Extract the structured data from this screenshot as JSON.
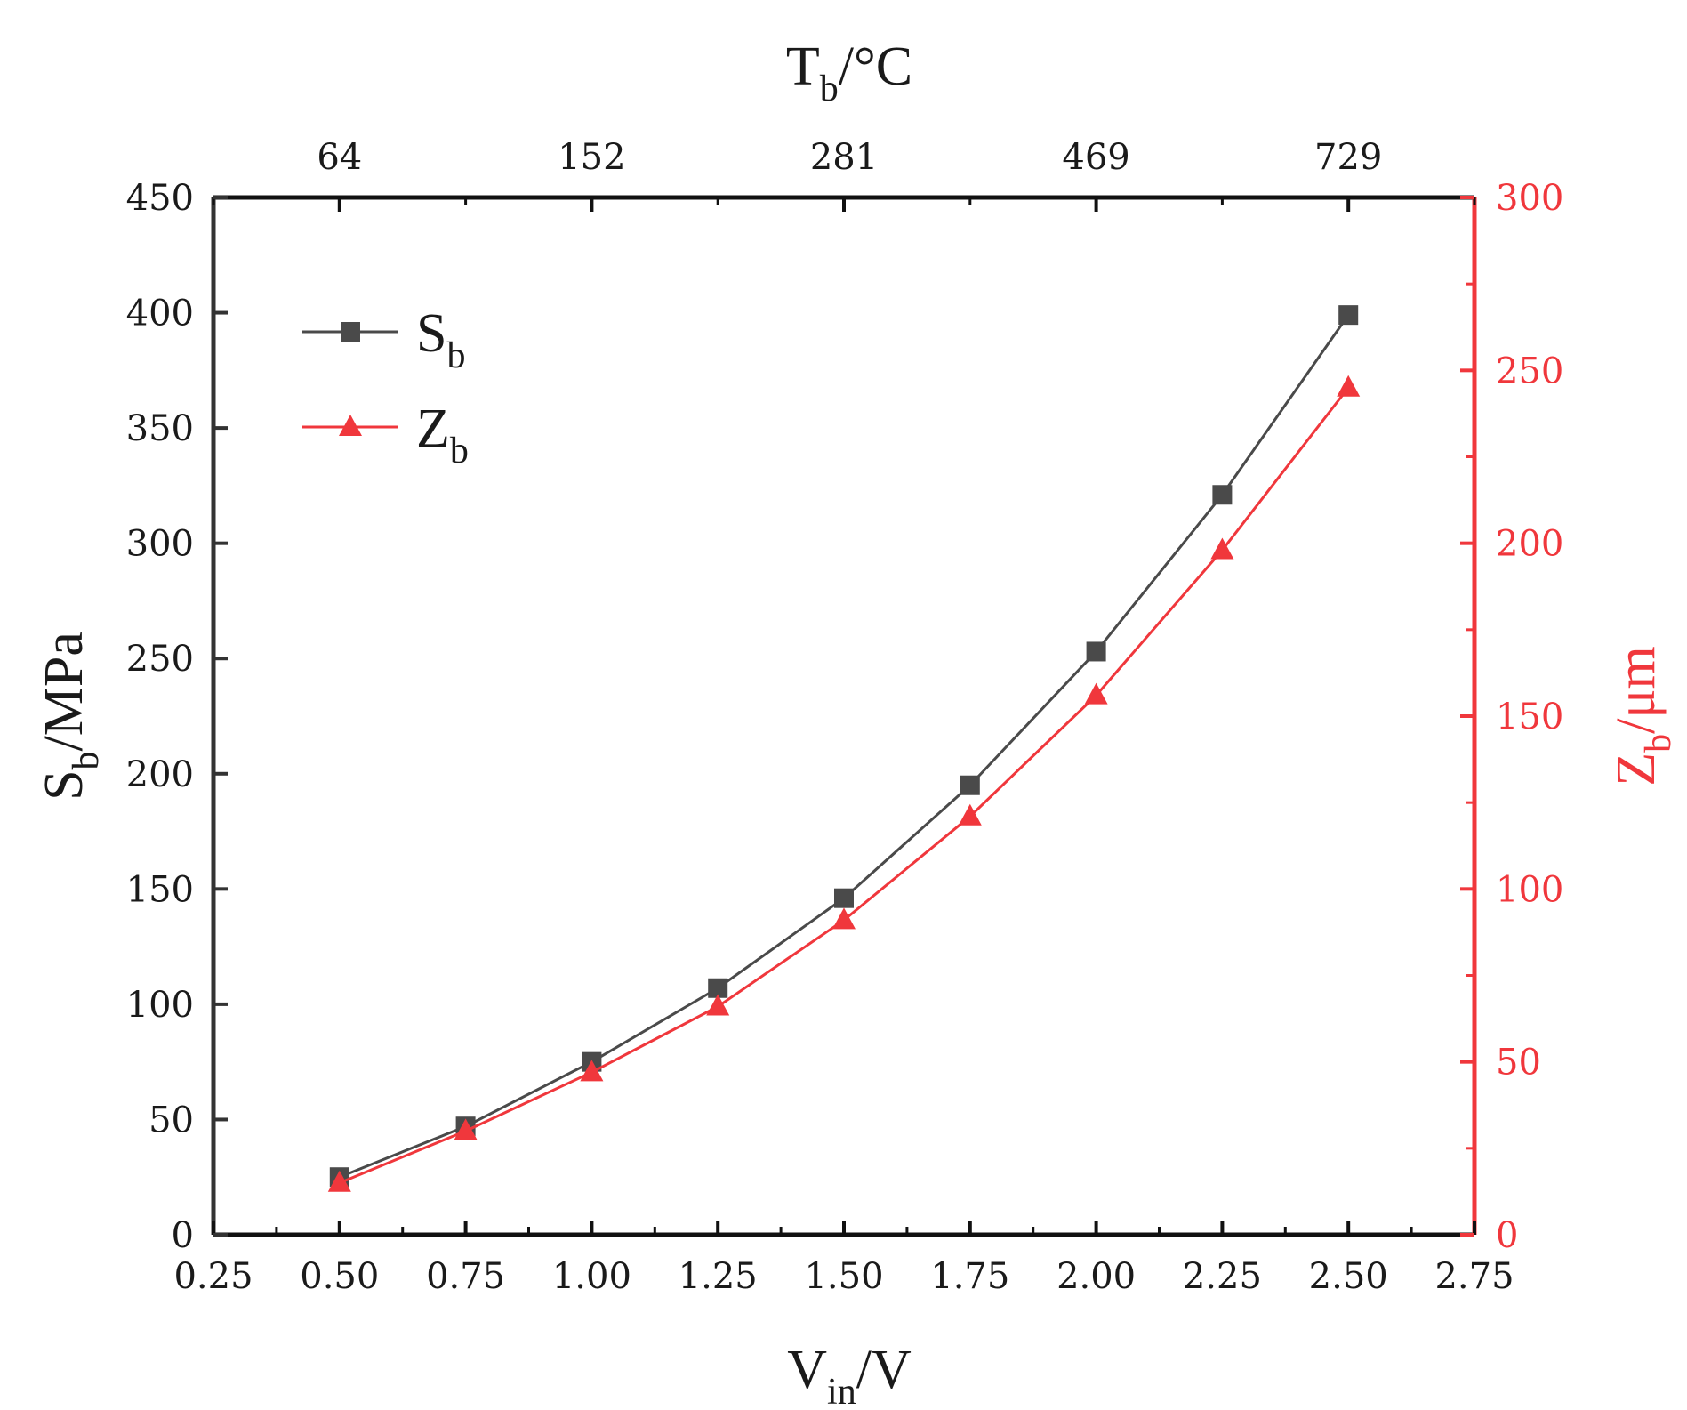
{
  "chart_data": {
    "type": "line",
    "xlabel": {
      "main": "V",
      "sub": "in",
      "tail": "/V"
    },
    "ylabel_left": {
      "main": "S",
      "sub": "b",
      "tail": "/MPa"
    },
    "ylabel_right": {
      "main": "Z",
      "sub": "b",
      "tail": "/μm"
    },
    "xlabel_top": {
      "main": "T",
      "sub": "b",
      "tail": "/°C"
    },
    "xlim": [
      0.25,
      2.75
    ],
    "ylim_left": [
      0,
      450
    ],
    "ylim_right": [
      0,
      300
    ],
    "x_ticks": [
      "0.25",
      "0.50",
      "0.75",
      "1.00",
      "1.25",
      "1.50",
      "1.75",
      "2.00",
      "2.25",
      "2.50",
      "2.75"
    ],
    "y_ticks_left": [
      "0",
      "50",
      "100",
      "150",
      "200",
      "250",
      "300",
      "350",
      "400",
      "450"
    ],
    "y_ticks_right": [
      "0",
      "50",
      "100",
      "150",
      "200",
      "250",
      "300"
    ],
    "top_ticks": [
      {
        "x": 0.5,
        "label": "64"
      },
      {
        "x": 1.0,
        "label": "152"
      },
      {
        "x": 1.5,
        "label": "281"
      },
      {
        "x": 2.0,
        "label": "469"
      },
      {
        "x": 2.5,
        "label": "729"
      }
    ],
    "x": [
      0.5,
      0.75,
      1.0,
      1.25,
      1.5,
      1.75,
      2.0,
      2.25,
      2.5
    ],
    "series": [
      {
        "name": "S",
        "name_sub": "b",
        "axis": "left",
        "marker": "square",
        "color": "#4a4a4a",
        "values": [
          25,
          47,
          75,
          107,
          146,
          195,
          253,
          321,
          399
        ]
      },
      {
        "name": "Z",
        "name_sub": "b",
        "axis": "right",
        "marker": "triangle",
        "color": "#f0373c",
        "values": [
          15,
          30,
          47,
          66,
          91,
          121,
          156,
          198,
          245
        ]
      }
    ],
    "legend_position": "top-left",
    "grid": false,
    "colors": {
      "axis_left": "#333333",
      "axis_right": "#f0373c",
      "text": "#1a1a1a"
    }
  }
}
